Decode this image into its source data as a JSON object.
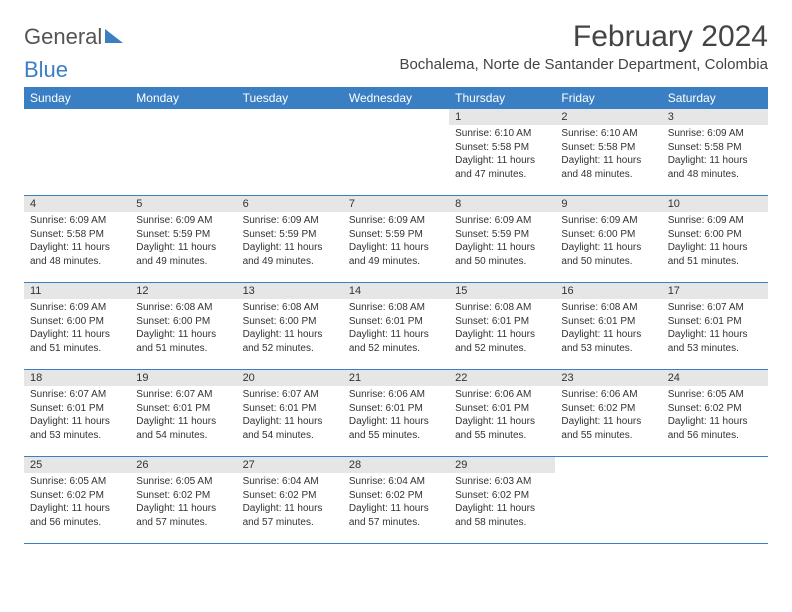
{
  "logo": {
    "text1": "General",
    "text2": "Blue"
  },
  "title": "February 2024",
  "location": "Bochalema, Norte de Santander Department, Colombia",
  "colors": {
    "header_bg": "#3a7fc4",
    "header_text": "#ffffff",
    "daynum_bg": "#e6e6e6",
    "border": "#3a7fc4",
    "text": "#333333",
    "page_bg": "#ffffff"
  },
  "day_headers": [
    "Sunday",
    "Monday",
    "Tuesday",
    "Wednesday",
    "Thursday",
    "Friday",
    "Saturday"
  ],
  "weeks": [
    [
      {
        "empty": true
      },
      {
        "empty": true
      },
      {
        "empty": true
      },
      {
        "empty": true
      },
      {
        "day": "1",
        "sunrise": "6:10 AM",
        "sunset": "5:58 PM",
        "daylight": "11 hours and 47 minutes."
      },
      {
        "day": "2",
        "sunrise": "6:10 AM",
        "sunset": "5:58 PM",
        "daylight": "11 hours and 48 minutes."
      },
      {
        "day": "3",
        "sunrise": "6:09 AM",
        "sunset": "5:58 PM",
        "daylight": "11 hours and 48 minutes."
      }
    ],
    [
      {
        "day": "4",
        "sunrise": "6:09 AM",
        "sunset": "5:58 PM",
        "daylight": "11 hours and 48 minutes."
      },
      {
        "day": "5",
        "sunrise": "6:09 AM",
        "sunset": "5:59 PM",
        "daylight": "11 hours and 49 minutes."
      },
      {
        "day": "6",
        "sunrise": "6:09 AM",
        "sunset": "5:59 PM",
        "daylight": "11 hours and 49 minutes."
      },
      {
        "day": "7",
        "sunrise": "6:09 AM",
        "sunset": "5:59 PM",
        "daylight": "11 hours and 49 minutes."
      },
      {
        "day": "8",
        "sunrise": "6:09 AM",
        "sunset": "5:59 PM",
        "daylight": "11 hours and 50 minutes."
      },
      {
        "day": "9",
        "sunrise": "6:09 AM",
        "sunset": "6:00 PM",
        "daylight": "11 hours and 50 minutes."
      },
      {
        "day": "10",
        "sunrise": "6:09 AM",
        "sunset": "6:00 PM",
        "daylight": "11 hours and 51 minutes."
      }
    ],
    [
      {
        "day": "11",
        "sunrise": "6:09 AM",
        "sunset": "6:00 PM",
        "daylight": "11 hours and 51 minutes."
      },
      {
        "day": "12",
        "sunrise": "6:08 AM",
        "sunset": "6:00 PM",
        "daylight": "11 hours and 51 minutes."
      },
      {
        "day": "13",
        "sunrise": "6:08 AM",
        "sunset": "6:00 PM",
        "daylight": "11 hours and 52 minutes."
      },
      {
        "day": "14",
        "sunrise": "6:08 AM",
        "sunset": "6:01 PM",
        "daylight": "11 hours and 52 minutes."
      },
      {
        "day": "15",
        "sunrise": "6:08 AM",
        "sunset": "6:01 PM",
        "daylight": "11 hours and 52 minutes."
      },
      {
        "day": "16",
        "sunrise": "6:08 AM",
        "sunset": "6:01 PM",
        "daylight": "11 hours and 53 minutes."
      },
      {
        "day": "17",
        "sunrise": "6:07 AM",
        "sunset": "6:01 PM",
        "daylight": "11 hours and 53 minutes."
      }
    ],
    [
      {
        "day": "18",
        "sunrise": "6:07 AM",
        "sunset": "6:01 PM",
        "daylight": "11 hours and 53 minutes."
      },
      {
        "day": "19",
        "sunrise": "6:07 AM",
        "sunset": "6:01 PM",
        "daylight": "11 hours and 54 minutes."
      },
      {
        "day": "20",
        "sunrise": "6:07 AM",
        "sunset": "6:01 PM",
        "daylight": "11 hours and 54 minutes."
      },
      {
        "day": "21",
        "sunrise": "6:06 AM",
        "sunset": "6:01 PM",
        "daylight": "11 hours and 55 minutes."
      },
      {
        "day": "22",
        "sunrise": "6:06 AM",
        "sunset": "6:01 PM",
        "daylight": "11 hours and 55 minutes."
      },
      {
        "day": "23",
        "sunrise": "6:06 AM",
        "sunset": "6:02 PM",
        "daylight": "11 hours and 55 minutes."
      },
      {
        "day": "24",
        "sunrise": "6:05 AM",
        "sunset": "6:02 PM",
        "daylight": "11 hours and 56 minutes."
      }
    ],
    [
      {
        "day": "25",
        "sunrise": "6:05 AM",
        "sunset": "6:02 PM",
        "daylight": "11 hours and 56 minutes."
      },
      {
        "day": "26",
        "sunrise": "6:05 AM",
        "sunset": "6:02 PM",
        "daylight": "11 hours and 57 minutes."
      },
      {
        "day": "27",
        "sunrise": "6:04 AM",
        "sunset": "6:02 PM",
        "daylight": "11 hours and 57 minutes."
      },
      {
        "day": "28",
        "sunrise": "6:04 AM",
        "sunset": "6:02 PM",
        "daylight": "11 hours and 57 minutes."
      },
      {
        "day": "29",
        "sunrise": "6:03 AM",
        "sunset": "6:02 PM",
        "daylight": "11 hours and 58 minutes."
      },
      {
        "empty": true
      },
      {
        "empty": true
      }
    ]
  ],
  "labels": {
    "sunrise": "Sunrise:",
    "sunset": "Sunset:",
    "daylight": "Daylight:"
  }
}
